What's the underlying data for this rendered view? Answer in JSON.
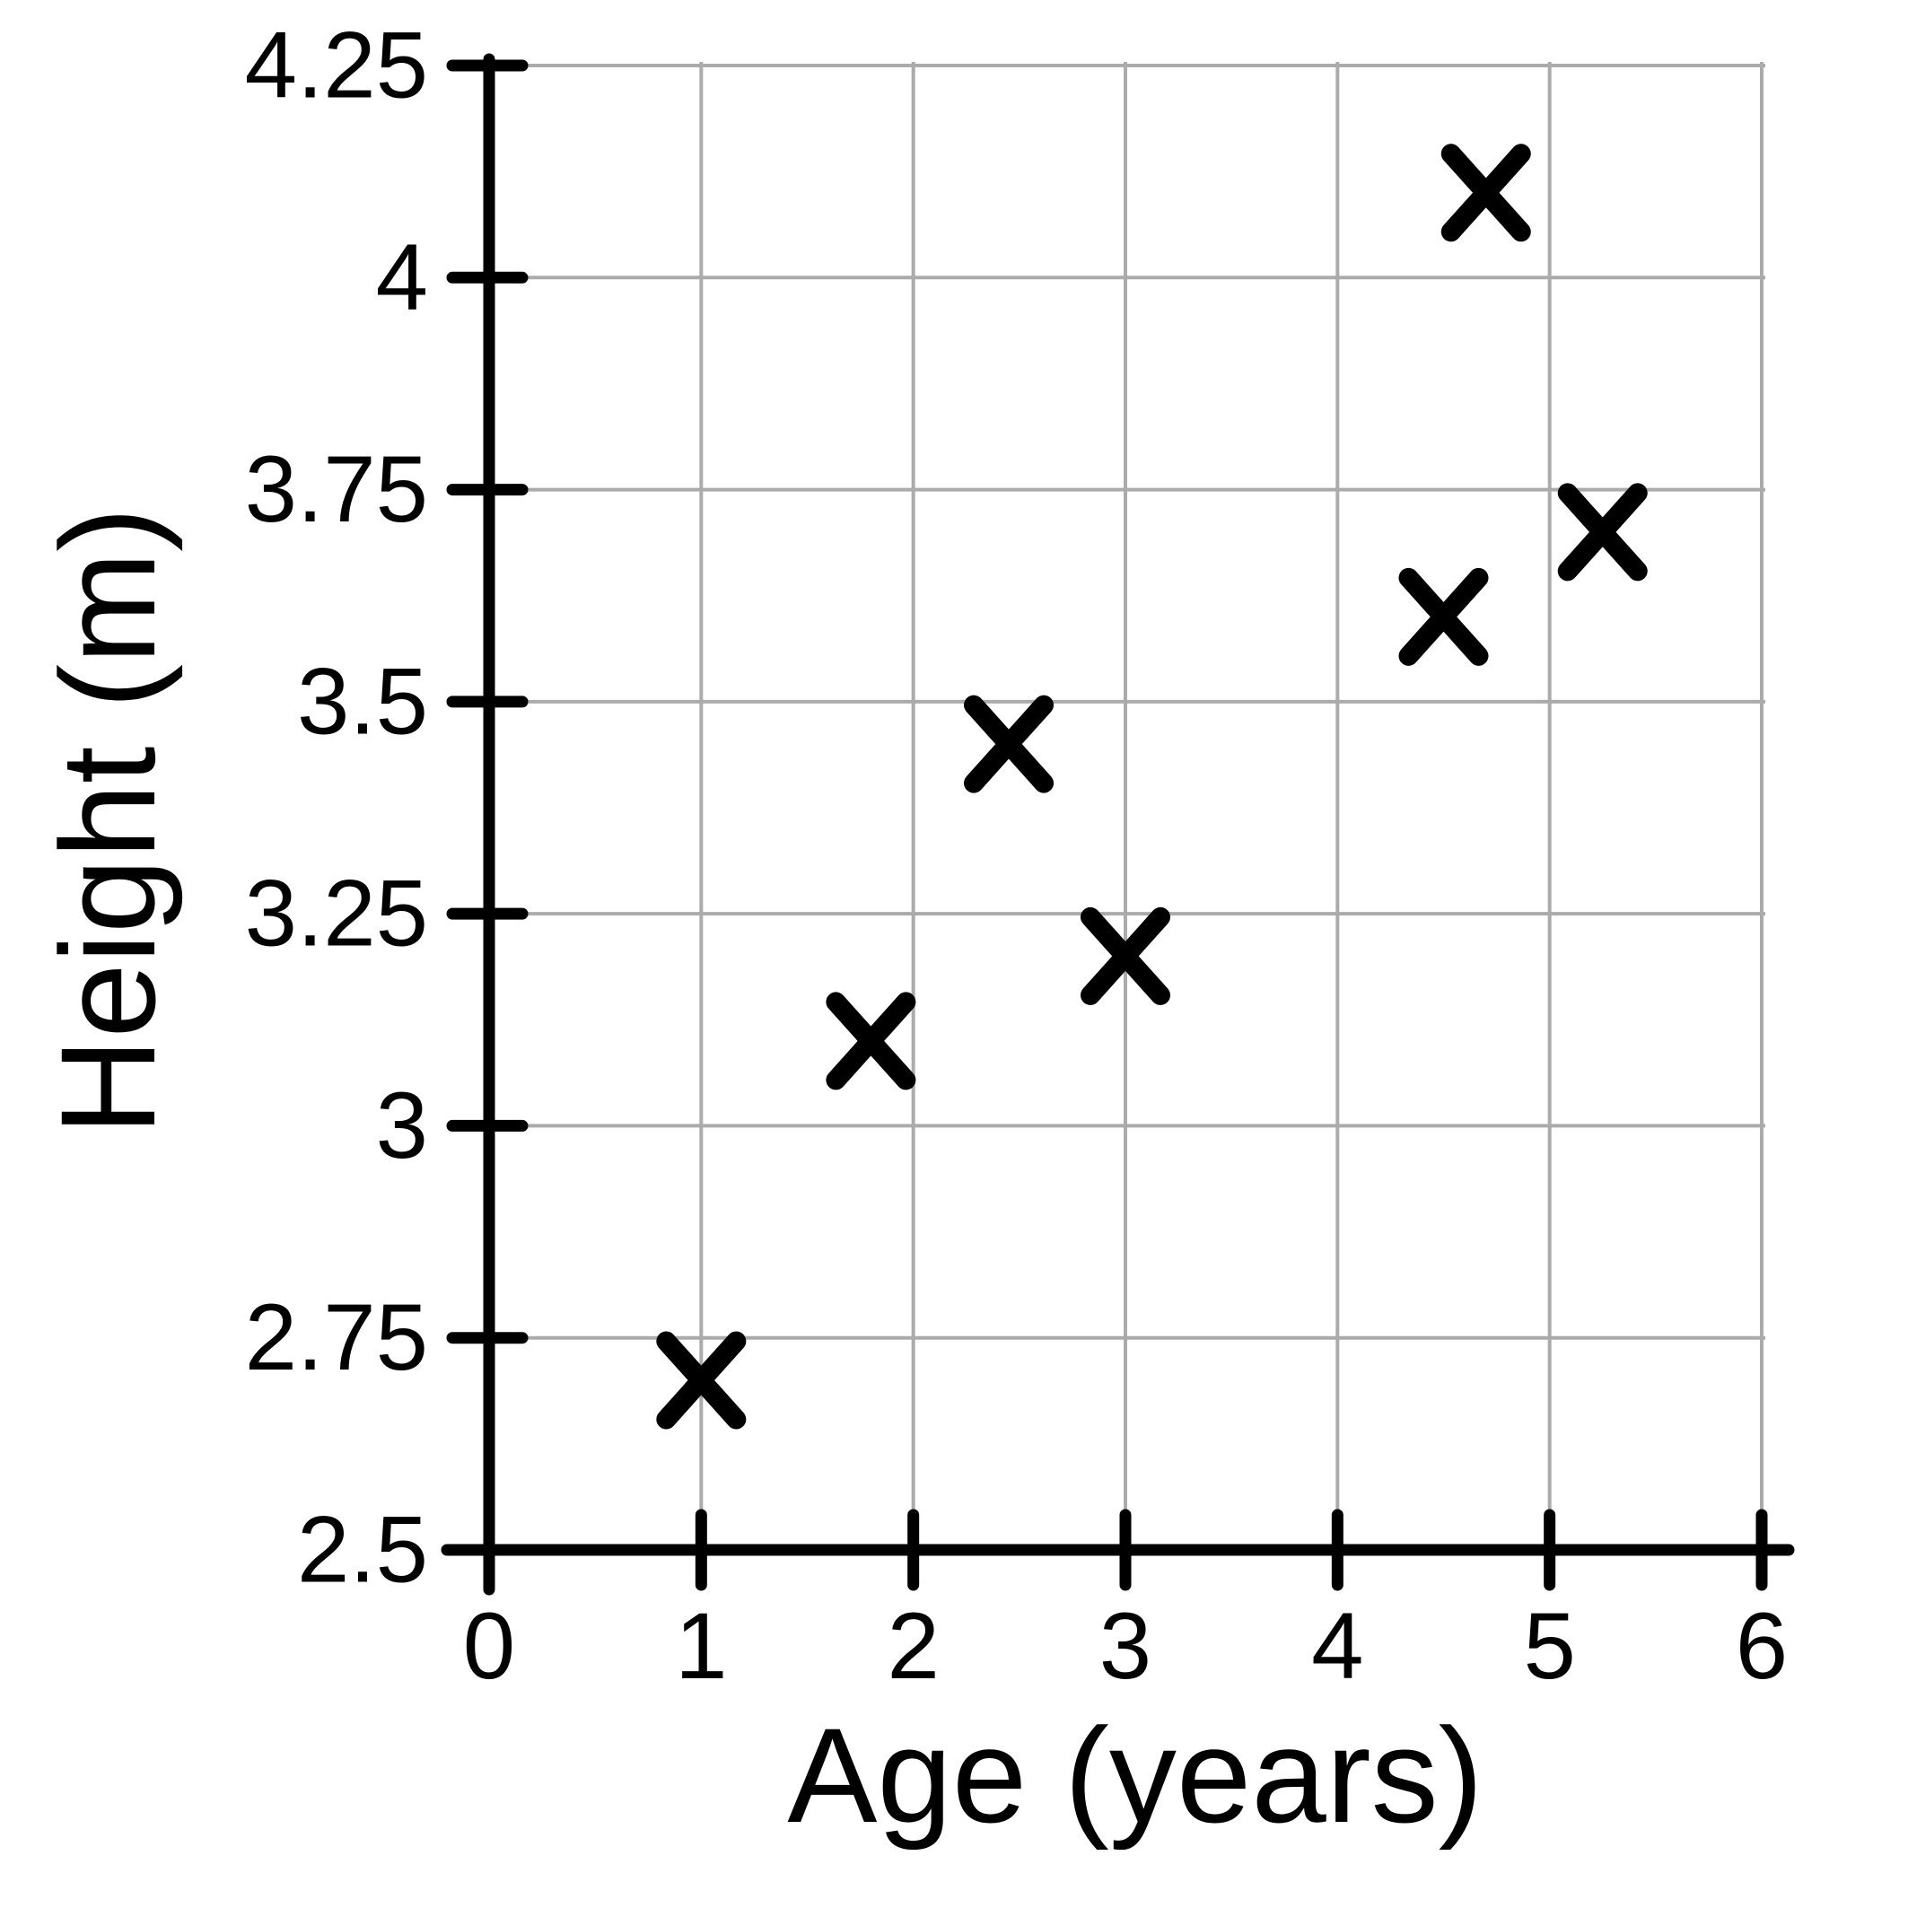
{
  "chart_data": {
    "type": "scatter",
    "title": "",
    "xlabel": "Age (years)",
    "ylabel": "Height (m)",
    "xlim": [
      0,
      6
    ],
    "ylim": [
      2.5,
      4.25
    ],
    "x_ticks": [
      0,
      1,
      2,
      3,
      4,
      5,
      6
    ],
    "x_tick_labels": [
      "0",
      "1",
      "2",
      "3",
      "4",
      "5",
      "6"
    ],
    "y_ticks": [
      2.5,
      2.75,
      3,
      3.25,
      3.5,
      3.75,
      4,
      4.25
    ],
    "y_tick_labels": [
      "2.5",
      "2.75",
      "3",
      "3.25",
      "3.5",
      "3.75",
      "4",
      "4.25"
    ],
    "grid": true,
    "legend_position": "none",
    "marker": "x",
    "points": [
      {
        "x": 1,
        "y": 2.7
      },
      {
        "x": 1.8,
        "y": 3.1
      },
      {
        "x": 2.45,
        "y": 3.45
      },
      {
        "x": 3,
        "y": 3.2
      },
      {
        "x": 4.5,
        "y": 3.6
      },
      {
        "x": 4.7,
        "y": 4.1
      },
      {
        "x": 5.25,
        "y": 3.7
      }
    ],
    "colors": {
      "marker": "#000000",
      "axis": "#000000",
      "grid": "#ababab",
      "text": "#000000",
      "background": "#ffffff"
    }
  }
}
